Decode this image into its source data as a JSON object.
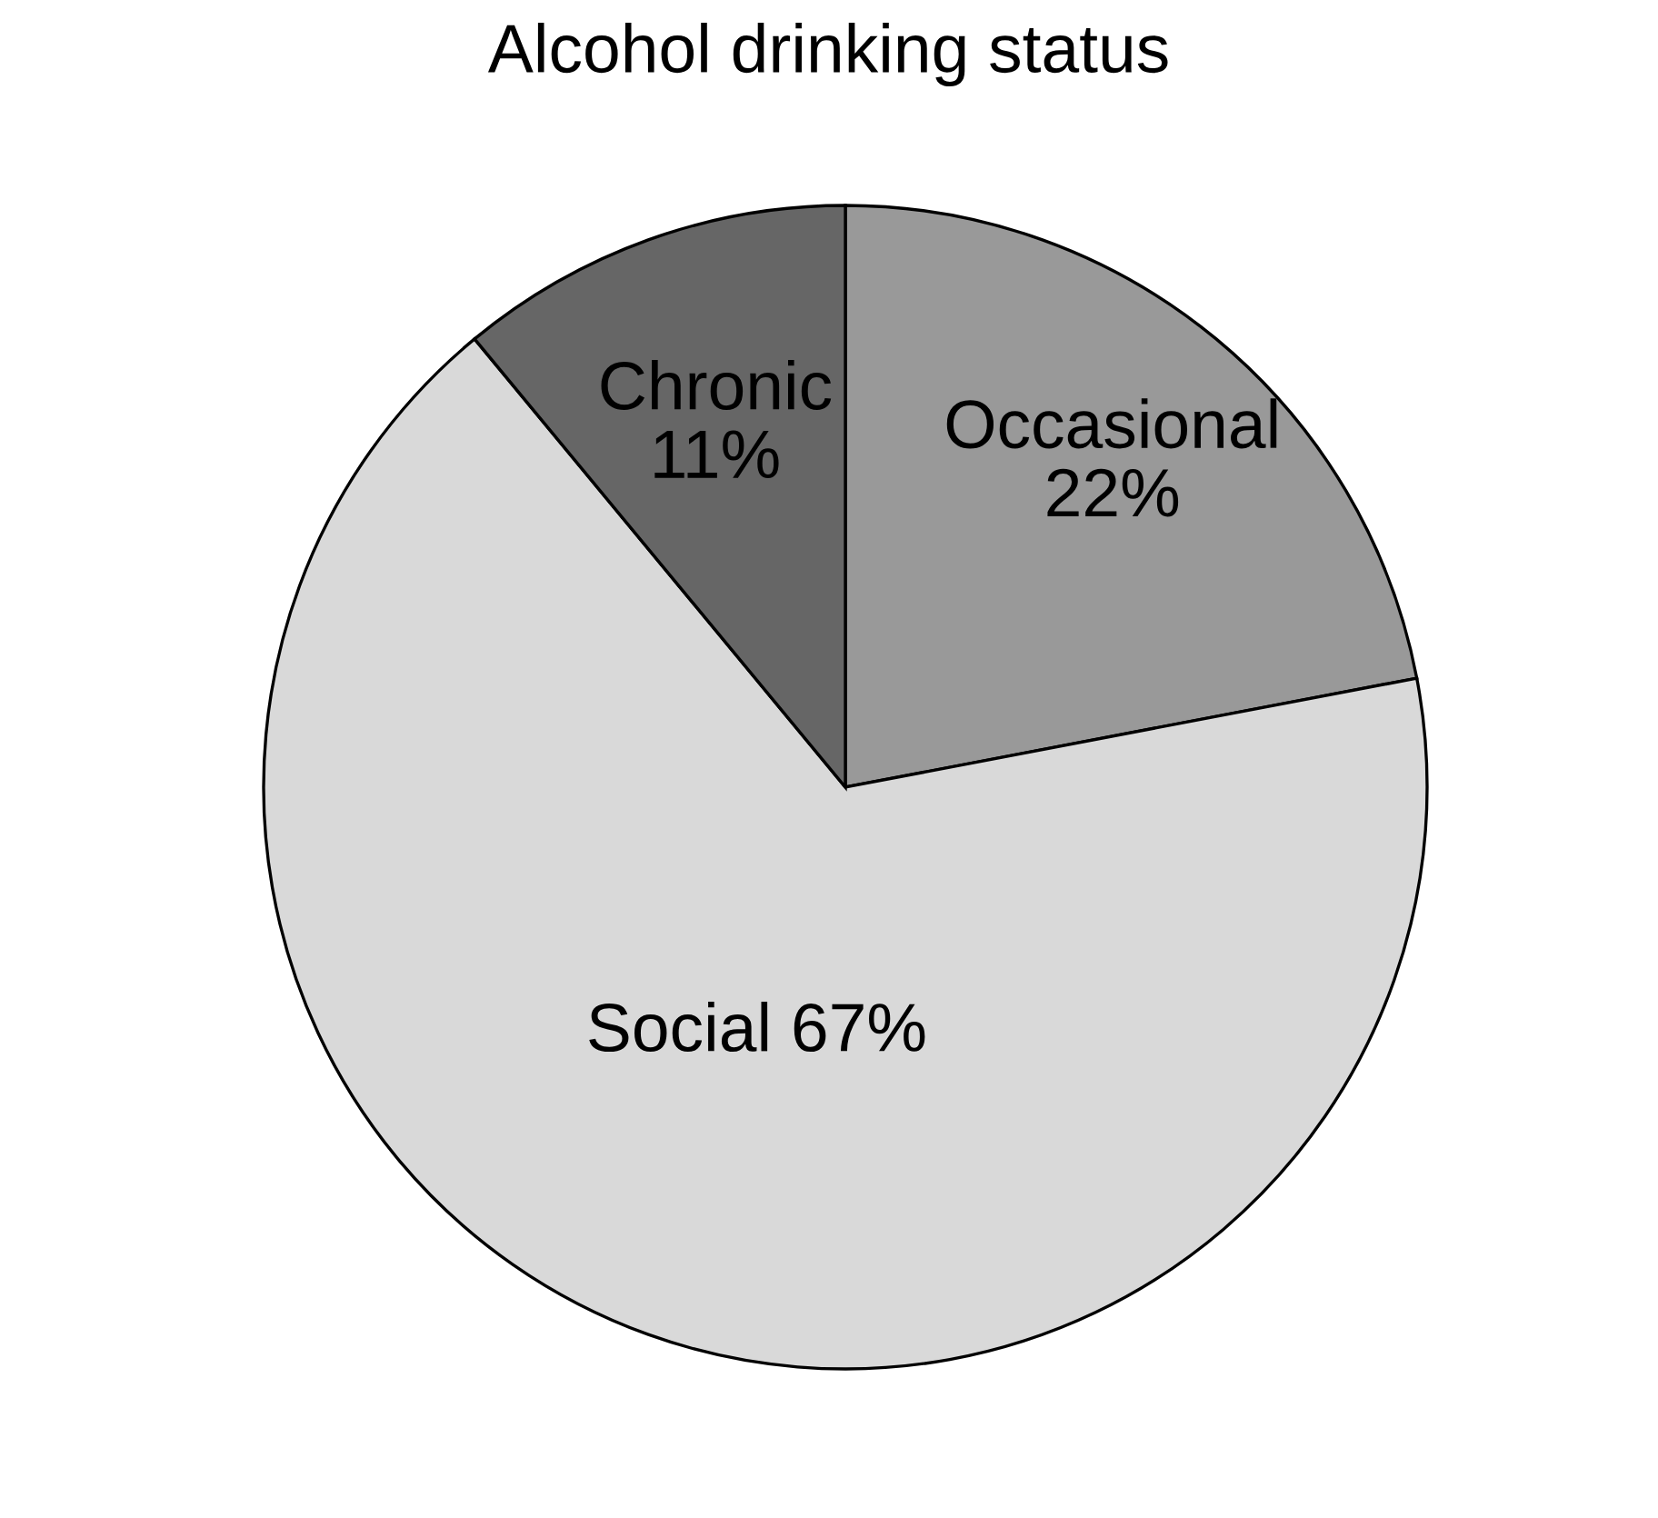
{
  "chart_data": {
    "type": "pie",
    "title": "Alcohol drinking status",
    "categories": [
      "Occasional",
      "Social",
      "Chronic"
    ],
    "values": [
      22,
      67,
      11
    ],
    "value_labels": [
      "22%",
      "67%",
      "11%"
    ],
    "colors": [
      "#999999",
      "#d9d9d9",
      "#666666"
    ],
    "legend": false
  }
}
